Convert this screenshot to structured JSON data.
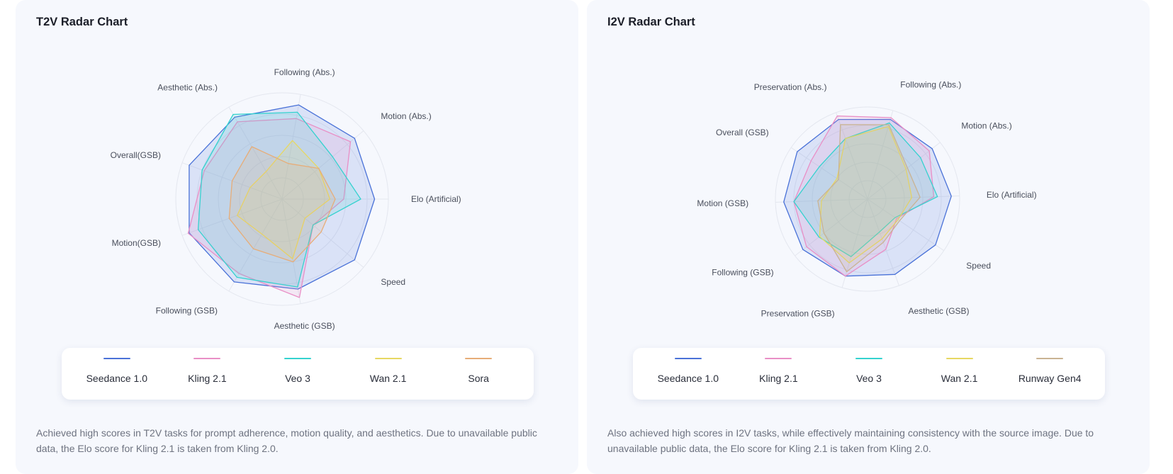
{
  "colors": {
    "Seedance 1.0": "#4a72d8",
    "Kling 2.1": "#e98fc6",
    "Veo 3": "#35d2cf",
    "Wan 2.1": "#e7d862",
    "Sora": "#e7ad78",
    "Runway Gen4": "#c9b393"
  },
  "panels": [
    {
      "title": "T2V Radar Chart",
      "legend": [
        "Seedance 1.0",
        "Kling 2.1",
        "Veo 3",
        "Wan 2.1",
        "Sora"
      ],
      "description": "Achieved high scores in T2V tasks for prompt adherence, motion quality, and aesthetics. Due to unavailable public data, the Elo score for Kling 2.1 is taken from Kling 2.0."
    },
    {
      "title": "I2V Radar Chart",
      "legend": [
        "Seedance 1.0",
        "Kling 2.1",
        "Veo 3",
        "Wan 2.1",
        "Runway Gen4"
      ],
      "description": "Also achieved high scores in I2V tasks, while effectively maintaining consistency with the source image. Due to unavailable public data, the Elo score for Kling 2.1 is taken from Kling 2.0."
    }
  ],
  "chart_data": [
    {
      "type": "radar",
      "title": "T2V Radar Chart",
      "axes": [
        "Following (Abs.)",
        "Motion  (Abs.)",
        "Elo (Artificial)",
        "Speed",
        "Aesthetic (GSB)",
        "Following (GSB)",
        "Motion(GSB)",
        "Overall(GSB)",
        "Aesthetic (Abs.)"
      ],
      "rlim": [
        0,
        1
      ],
      "grid": true,
      "legend_position": "bottom",
      "series": [
        {
          "name": "Seedance 1.0",
          "values": [
            0.9,
            0.89,
            0.87,
            0.89,
            0.86,
            0.9,
            0.93,
            0.93,
            0.89
          ]
        },
        {
          "name": "Kling 2.1",
          "values": [
            0.77,
            0.84,
            0.58,
            0.38,
            0.94,
            0.81,
            0.94,
            0.78,
            0.84
          ]
        },
        {
          "name": "Veo 3",
          "values": [
            0.83,
            0.62,
            0.74,
            0.38,
            0.84,
            0.85,
            0.84,
            0.8,
            0.92
          ]
        },
        {
          "name": "Wan 2.1",
          "values": [
            0.56,
            0.45,
            0.45,
            0.28,
            0.57,
            0.38,
            0.45,
            0.32,
            0.3
          ]
        },
        {
          "name": "Sora",
          "values": [
            0.34,
            0.45,
            0.5,
            0.48,
            0.6,
            0.54,
            0.53,
            0.5,
            0.57
          ]
        }
      ]
    },
    {
      "type": "radar",
      "title": "I2V Radar Chart",
      "axes": [
        "Following (Abs.)",
        "Motion (Abs.)",
        "Elo (Artificial)",
        "Speed",
        "Aesthetic (GSB)",
        "Preservation (GSB)",
        "Following (GSB)",
        "Motion (GSB)",
        "Overall (GSB)",
        "Preservation (Abs.)"
      ],
      "rlim": [
        0,
        1
      ],
      "grid": true,
      "legend_position": "bottom",
      "series": [
        {
          "name": "Seedance 1.0",
          "values": [
            0.9,
            0.89,
            0.91,
            0.89,
            0.87,
            0.87,
            0.89,
            0.91,
            0.92,
            0.92
          ]
        },
        {
          "name": "Kling 2.1",
          "values": [
            0.92,
            0.85,
            0.72,
            0.38,
            0.58,
            0.87,
            0.84,
            0.8,
            0.74,
            0.96
          ]
        },
        {
          "name": "Veo 3",
          "values": [
            0.86,
            0.73,
            0.76,
            0.36,
            0.38,
            0.65,
            0.67,
            0.8,
            0.63,
            0.7
          ]
        },
        {
          "name": "Wan 2.1",
          "values": [
            0.82,
            0.53,
            0.48,
            0.4,
            0.46,
            0.72,
            0.66,
            0.5,
            0.4,
            0.7
          ]
        },
        {
          "name": "Runway Gen4",
          "values": [
            0.84,
            0.55,
            0.57,
            0.42,
            0.5,
            0.82,
            0.6,
            0.54,
            0.38,
            0.86
          ]
        }
      ]
    }
  ]
}
